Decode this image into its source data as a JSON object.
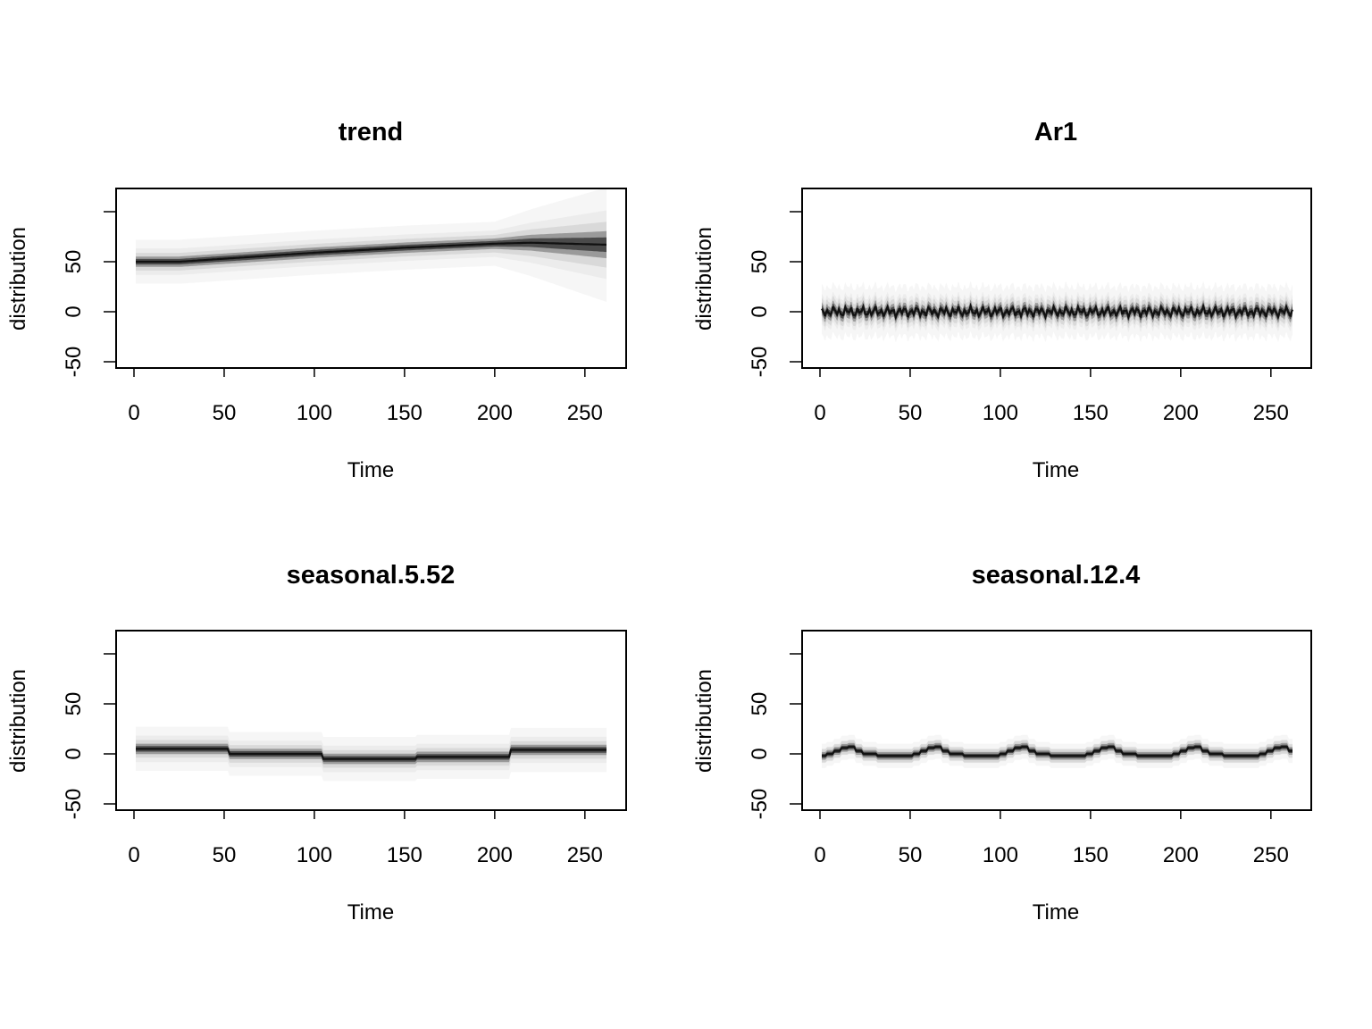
{
  "chart_data": [
    {
      "type": "area",
      "title": "trend",
      "xlabel": "Time",
      "ylabel": "distribution",
      "xlim": [
        0,
        262
      ],
      "ylim": [
        -60,
        120
      ],
      "x_ticks": [
        0,
        50,
        100,
        150,
        200,
        250
      ],
      "y_ticks": [
        -50,
        0,
        50
      ],
      "grid": false,
      "legend": "none",
      "series_kind": "trend",
      "median_points": [
        [
          1,
          50
        ],
        [
          25,
          50
        ],
        [
          50,
          53
        ],
        [
          100,
          59
        ],
        [
          150,
          64
        ],
        [
          200,
          68
        ],
        [
          220,
          69
        ],
        [
          262,
          67
        ]
      ],
      "band_inner_width": 4,
      "band_outer_width": 22
    },
    {
      "type": "area",
      "title": "Ar1",
      "xlabel": "Time",
      "ylabel": "distribution",
      "xlim": [
        0,
        262
      ],
      "ylim": [
        -60,
        120
      ],
      "x_ticks": [
        0,
        50,
        100,
        150,
        200,
        250
      ],
      "y_ticks": [
        -50,
        0,
        50
      ],
      "grid": false,
      "legend": "none",
      "series_kind": "ar1",
      "amplitude": 5,
      "band_inner_width": 5,
      "band_outer_width": 25
    },
    {
      "type": "area",
      "title": "seasonal.5.52",
      "xlabel": "Time",
      "ylabel": "distribution",
      "xlim": [
        0,
        262
      ],
      "ylim": [
        -60,
        120
      ],
      "x_ticks": [
        0,
        50,
        100,
        150,
        200,
        250
      ],
      "y_ticks": [
        -50,
        0,
        50
      ],
      "grid": false,
      "legend": "none",
      "series_kind": "steps",
      "steps": [
        {
          "x0": 1,
          "x1": 53,
          "y": 5
        },
        {
          "x0": 53,
          "x1": 105,
          "y": 0
        },
        {
          "x0": 105,
          "x1": 157,
          "y": -5
        },
        {
          "x0": 157,
          "x1": 209,
          "y": -3
        },
        {
          "x0": 209,
          "x1": 262,
          "y": 4
        }
      ],
      "band_inner_width": 4,
      "band_outer_width": 22
    },
    {
      "type": "area",
      "title": "seasonal.12.4",
      "xlabel": "Time",
      "ylabel": "distribution",
      "xlim": [
        0,
        262
      ],
      "ylim": [
        -60,
        120
      ],
      "x_ticks": [
        0,
        50,
        100,
        150,
        200,
        250
      ],
      "y_ticks": [
        -50,
        0,
        50
      ],
      "grid": false,
      "legend": "none",
      "series_kind": "seasonal_pattern",
      "period": 48,
      "pattern": [
        -2,
        0,
        3,
        6,
        7,
        3,
        0,
        0,
        -2,
        -2,
        -2,
        -2
      ],
      "band_inner_width": 3,
      "band_outer_width": 12
    }
  ]
}
